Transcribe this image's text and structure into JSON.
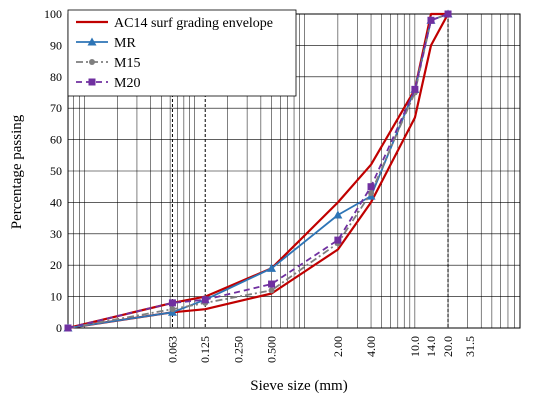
{
  "chart_data": {
    "type": "line",
    "x_scale": "log",
    "xlabel": "Sieve size (mm)",
    "ylabel": "Percentage passing",
    "ylim": [
      0,
      100
    ],
    "yticks": [
      0,
      10,
      20,
      30,
      40,
      50,
      60,
      70,
      80,
      90,
      100
    ],
    "xtick_labels": [
      {
        "label": "0.063",
        "value": 0.063
      },
      {
        "label": "0.125",
        "value": 0.125
      },
      {
        "label": "0.250",
        "value": 0.25
      },
      {
        "label": "0.500",
        "value": 0.5
      },
      {
        "label": "2.00",
        "value": 2
      },
      {
        "label": "4.00",
        "value": 4
      },
      {
        "label": "10.0",
        "value": 10
      },
      {
        "label": "14.0",
        "value": 14
      },
      {
        "label": "20.0",
        "value": 20
      },
      {
        "label": "31.5",
        "value": 31.5
      }
    ],
    "dashed_sieves": [
      0.063,
      0.125,
      20
    ],
    "legend_position": "top-left",
    "grid": true,
    "series": [
      {
        "name": "AC14 surf grading envelope",
        "color": "#C00000",
        "style": "solid",
        "marker": "none",
        "x": [
          0.0071,
          0.063,
          0.125,
          0.5,
          2,
          4,
          10,
          14,
          20
        ],
        "y": [
          0,
          8,
          10,
          19,
          40,
          52,
          76,
          100,
          100
        ]
      },
      {
        "name": "",
        "color": "#C00000",
        "style": "solid",
        "marker": "none",
        "x": [
          0.0071,
          0.063,
          0.125,
          0.5,
          2,
          4,
          10,
          14,
          20
        ],
        "y": [
          0,
          5,
          6,
          11,
          25,
          40,
          67,
          90,
          100
        ]
      },
      {
        "name": "MR",
        "color": "#2E75B6",
        "style": "solid",
        "marker": "triangle",
        "x": [
          0.0071,
          0.063,
          0.125,
          0.5,
          2,
          4,
          10,
          14,
          20
        ],
        "y": [
          0,
          5,
          9,
          19,
          36,
          42,
          76,
          98,
          100
        ]
      },
      {
        "name": "M15",
        "color": "#7F7F7F",
        "style": "dashdot",
        "marker": "circle",
        "x": [
          0.0071,
          0.063,
          0.125,
          0.5,
          2,
          4,
          10,
          14,
          20
        ],
        "y": [
          0,
          6,
          8,
          12,
          27,
          43,
          75,
          98,
          100
        ]
      },
      {
        "name": "M20",
        "color": "#7030A0",
        "style": "dashed",
        "marker": "square",
        "x": [
          0.0071,
          0.063,
          0.125,
          0.5,
          2,
          4,
          10,
          14,
          20
        ],
        "y": [
          0,
          8,
          9,
          14,
          28,
          45,
          76,
          98,
          100
        ]
      }
    ]
  }
}
